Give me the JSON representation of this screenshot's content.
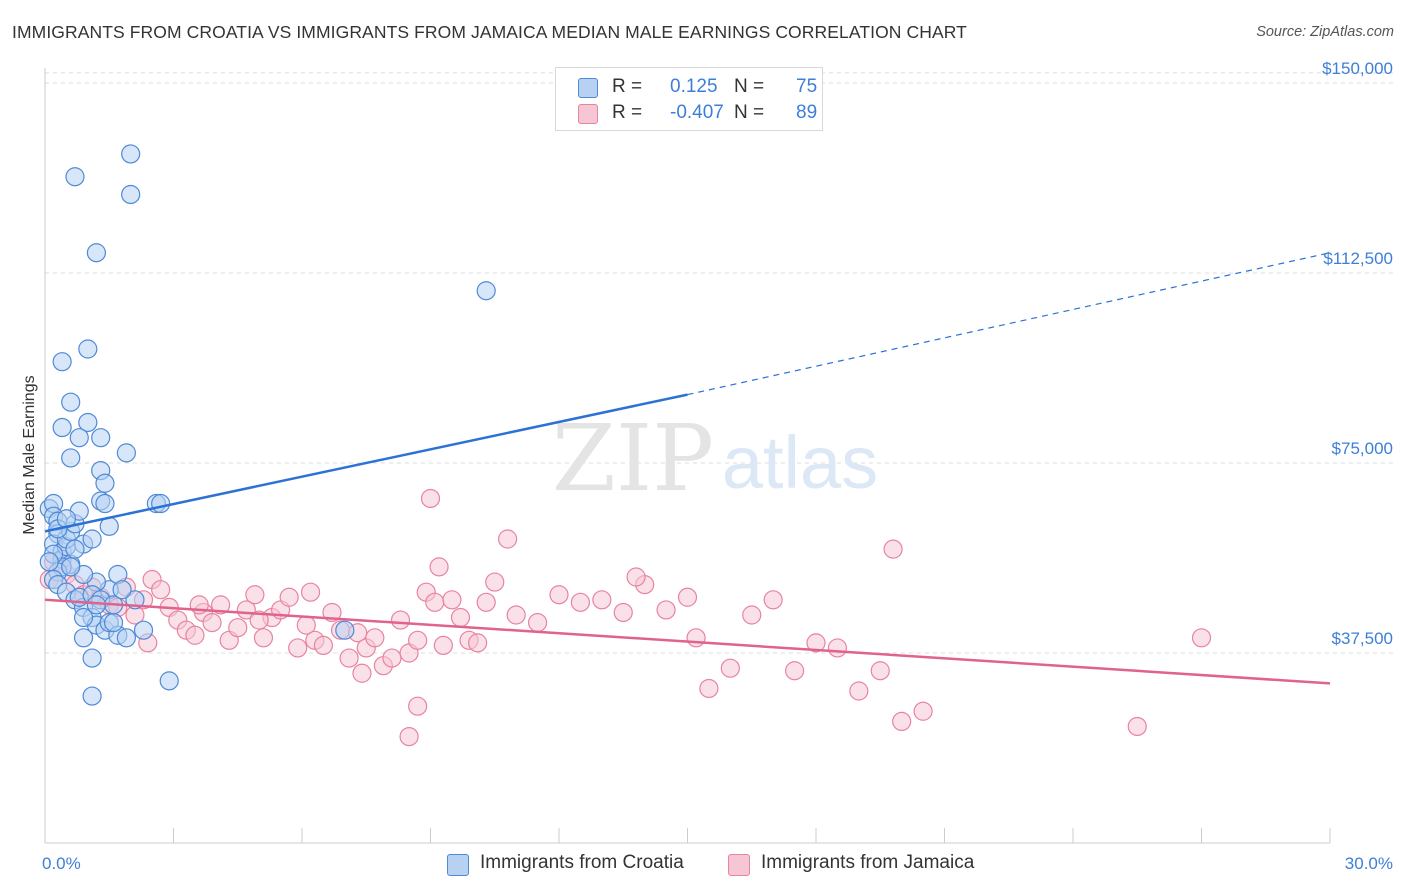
{
  "title": "IMMIGRANTS FROM CROATIA VS IMMIGRANTS FROM JAMAICA MEDIAN MALE EARNINGS CORRELATION CHART",
  "source": "Source: ZipAtlas.com",
  "watermark": {
    "zip": "ZIP",
    "atlas": "atlas"
  },
  "legend": {
    "rows": [
      {
        "r_label": "R =",
        "r_value": "0.125",
        "n_label": "N =",
        "n_value": "75"
      },
      {
        "r_label": "R =",
        "r_value": "-0.407",
        "n_label": "N =",
        "n_value": "89"
      }
    ]
  },
  "bottom_legend": {
    "croatia": "Immigrants from Croatia",
    "jamaica": "Immigrants from Jamaica"
  },
  "colors": {
    "croatia_fill": "#b7d1f3",
    "croatia_stroke": "#4f8ad6",
    "croatia_line": "#2b72d4",
    "jamaica_fill": "#f6c6d5",
    "jamaica_stroke": "#e8849f",
    "jamaica_line": "#e0628d",
    "tick_text": "#3d7fd8",
    "grid": "#dddddd"
  },
  "chart_data": {
    "type": "scatter",
    "xlabel": "",
    "ylabel": "Median Male Earnings",
    "xlim": [
      0,
      30
    ],
    "ylim": [
      0,
      155000
    ],
    "x_tick_labels": [
      {
        "value": 0,
        "label": "0.0%"
      },
      {
        "value": 30,
        "label": "30.0%"
      }
    ],
    "y_ticks": [
      {
        "value": 37500,
        "label": "$37,500"
      },
      {
        "value": 75000,
        "label": "$75,000"
      },
      {
        "value": 112500,
        "label": "$112,500"
      },
      {
        "value": 150000,
        "label": "$150,000"
      }
    ],
    "series": [
      {
        "name": "Immigrants from Croatia",
        "r": 0.125,
        "n": 75,
        "trend": {
          "x0": 0,
          "y0": 61500,
          "x1": 15,
          "y1": 88500,
          "dash_to_x": 30,
          "dash_to_y": 116500
        },
        "points": [
          [
            0.1,
            66000
          ],
          [
            0.2,
            67000
          ],
          [
            0.2,
            64500
          ],
          [
            0.3,
            63500
          ],
          [
            0.3,
            61000
          ],
          [
            0.2,
            59000
          ],
          [
            0.4,
            57500
          ],
          [
            0.4,
            56000
          ],
          [
            0.5,
            58500
          ],
          [
            0.5,
            60000
          ],
          [
            0.6,
            61500
          ],
          [
            0.7,
            63000
          ],
          [
            0.8,
            65500
          ],
          [
            0.6,
            55000
          ],
          [
            0.4,
            54500
          ],
          [
            0.3,
            53500
          ],
          [
            0.2,
            57000
          ],
          [
            0.1,
            55500
          ],
          [
            0.2,
            52000
          ],
          [
            0.3,
            51000
          ],
          [
            0.5,
            49500
          ],
          [
            0.7,
            48000
          ],
          [
            0.9,
            46500
          ],
          [
            1.1,
            44500
          ],
          [
            1.2,
            43000
          ],
          [
            1.4,
            42000
          ],
          [
            1.5,
            43500
          ],
          [
            1.7,
            41000
          ],
          [
            0.9,
            59000
          ],
          [
            1.1,
            60000
          ],
          [
            1.5,
            62500
          ],
          [
            1.3,
            67500
          ],
          [
            1.4,
            67000
          ],
          [
            1.3,
            73500
          ],
          [
            1.4,
            71000
          ],
          [
            1.3,
            80000
          ],
          [
            1.9,
            77000
          ],
          [
            1.0,
            83000
          ],
          [
            0.6,
            87000
          ],
          [
            0.4,
            95000
          ],
          [
            1.0,
            97500
          ],
          [
            0.4,
            82000
          ],
          [
            0.8,
            80000
          ],
          [
            0.6,
            76000
          ],
          [
            2.6,
            67000
          ],
          [
            2.7,
            67000
          ],
          [
            1.2,
            116500
          ],
          [
            2.0,
            136000
          ],
          [
            0.7,
            131500
          ],
          [
            2.0,
            128000
          ],
          [
            10.3,
            109000
          ],
          [
            1.1,
            36500
          ],
          [
            1.1,
            29000
          ],
          [
            2.9,
            32000
          ],
          [
            2.3,
            42000
          ],
          [
            1.6,
            43500
          ],
          [
            1.9,
            40500
          ],
          [
            0.9,
            40500
          ],
          [
            1.5,
            50000
          ],
          [
            1.7,
            53000
          ],
          [
            2.1,
            48000
          ],
          [
            1.2,
            51500
          ],
          [
            0.8,
            48500
          ],
          [
            0.9,
            44500
          ],
          [
            1.1,
            49000
          ],
          [
            7.0,
            42000
          ],
          [
            1.3,
            48000
          ],
          [
            1.6,
            47000
          ],
          [
            0.9,
            53000
          ],
          [
            0.3,
            62000
          ],
          [
            0.7,
            58000
          ],
          [
            0.5,
            64000
          ],
          [
            1.8,
            50000
          ],
          [
            1.2,
            47000
          ],
          [
            0.6,
            54500
          ]
        ]
      },
      {
        "name": "Immigrants from Jamaica",
        "r": -0.407,
        "n": 89,
        "trend": {
          "x0": 0,
          "y0": 48000,
          "x1": 30,
          "y1": 31500
        },
        "points": [
          [
            0.1,
            52000
          ],
          [
            0.2,
            55500
          ],
          [
            0.4,
            56000
          ],
          [
            0.5,
            53000
          ],
          [
            0.7,
            51000
          ],
          [
            0.9,
            49000
          ],
          [
            1.1,
            50500
          ],
          [
            1.3,
            48500
          ],
          [
            1.5,
            47000
          ],
          [
            1.7,
            46500
          ],
          [
            1.9,
            50500
          ],
          [
            2.1,
            45000
          ],
          [
            2.3,
            48000
          ],
          [
            2.5,
            52000
          ],
          [
            2.7,
            50000
          ],
          [
            2.9,
            46500
          ],
          [
            3.1,
            44000
          ],
          [
            3.3,
            42000
          ],
          [
            3.5,
            41000
          ],
          [
            3.7,
            45500
          ],
          [
            3.9,
            43500
          ],
          [
            4.1,
            47000
          ],
          [
            4.3,
            40000
          ],
          [
            4.5,
            42500
          ],
          [
            4.7,
            46000
          ],
          [
            4.9,
            49000
          ],
          [
            5.1,
            40500
          ],
          [
            5.3,
            44500
          ],
          [
            5.5,
            46000
          ],
          [
            5.7,
            48500
          ],
          [
            5.9,
            38500
          ],
          [
            6.1,
            43000
          ],
          [
            6.3,
            40000
          ],
          [
            6.5,
            39000
          ],
          [
            6.7,
            45500
          ],
          [
            6.9,
            42000
          ],
          [
            7.1,
            36500
          ],
          [
            7.3,
            41500
          ],
          [
            7.5,
            38500
          ],
          [
            7.7,
            40500
          ],
          [
            7.9,
            35000
          ],
          [
            8.1,
            36500
          ],
          [
            8.3,
            44000
          ],
          [
            8.5,
            37500
          ],
          [
            8.7,
            40000
          ],
          [
            8.9,
            49500
          ],
          [
            9.1,
            47500
          ],
          [
            9.3,
            39000
          ],
          [
            9.5,
            48000
          ],
          [
            9.7,
            44500
          ],
          [
            9.9,
            40000
          ],
          [
            10.1,
            39500
          ],
          [
            10.3,
            47500
          ],
          [
            10.5,
            51500
          ],
          [
            11.0,
            45000
          ],
          [
            11.5,
            43500
          ],
          [
            12.0,
            49000
          ],
          [
            12.5,
            47500
          ],
          [
            13.0,
            48000
          ],
          [
            13.5,
            45500
          ],
          [
            14.0,
            51000
          ],
          [
            14.5,
            46000
          ],
          [
            15.0,
            48500
          ],
          [
            15.5,
            30500
          ],
          [
            16.0,
            34500
          ],
          [
            16.5,
            45000
          ],
          [
            17.0,
            48000
          ],
          [
            17.5,
            34000
          ],
          [
            18.0,
            39500
          ],
          [
            18.5,
            38500
          ],
          [
            19.0,
            30000
          ],
          [
            19.5,
            34000
          ],
          [
            20.0,
            24000
          ],
          [
            20.5,
            26000
          ],
          [
            8.7,
            27000
          ],
          [
            8.5,
            21000
          ],
          [
            9.2,
            54500
          ],
          [
            9.0,
            68000
          ],
          [
            10.8,
            60000
          ],
          [
            13.8,
            52500
          ],
          [
            15.2,
            40500
          ],
          [
            19.8,
            58000
          ],
          [
            27.0,
            40500
          ],
          [
            25.5,
            23000
          ],
          [
            3.6,
            47000
          ],
          [
            5.0,
            44000
          ],
          [
            6.2,
            49500
          ],
          [
            7.4,
            33500
          ],
          [
            2.4,
            39500
          ]
        ]
      }
    ]
  }
}
